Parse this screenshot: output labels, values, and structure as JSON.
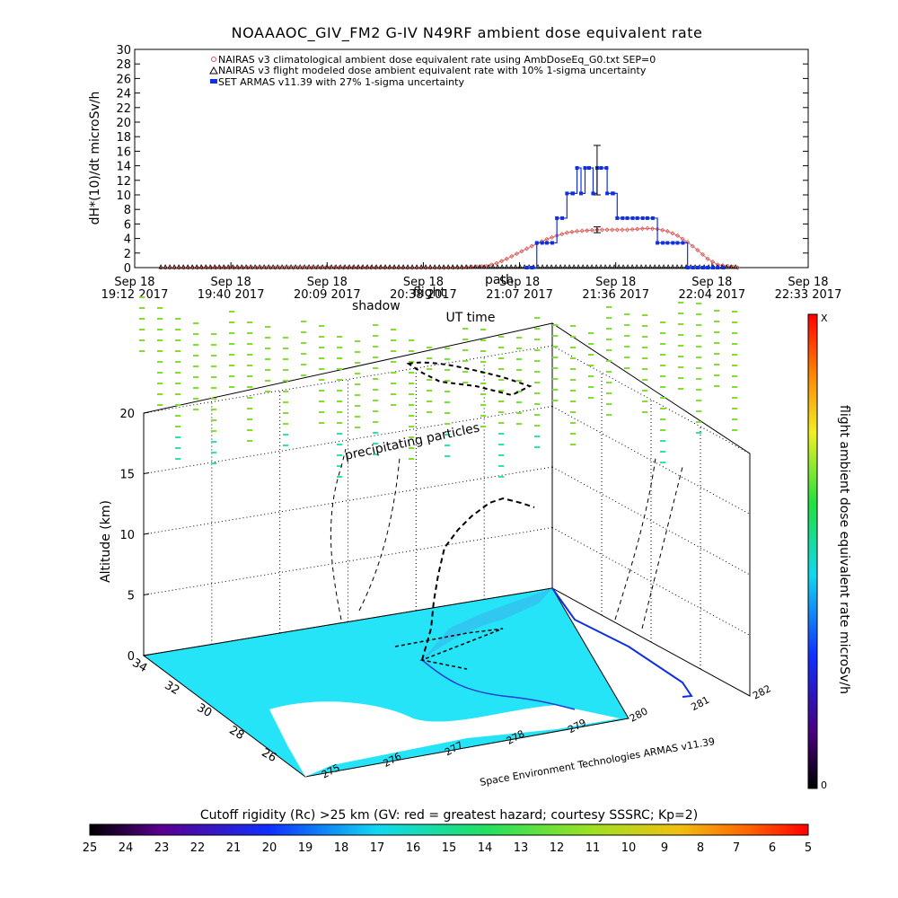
{
  "colors": {
    "climatological": "#d9534f",
    "armas": "#1030e0",
    "flight_model": "#000000",
    "sea": "#26e4f8",
    "land": "#ffffff",
    "precip_green": "#7fe030",
    "precip_cyan": "#28e6a8"
  },
  "chart_data": [
    {
      "type": "line",
      "title": "NOAAAOC_GIV_FM2 G-IV   N49RF  ambient dose equivalent rate",
      "xlabel": "UT time",
      "ylabel": "dH*(10)/dt microSv/h",
      "ylim": [
        0,
        30
      ],
      "yticks": [
        "0",
        "2",
        "4",
        "6",
        "8",
        "10",
        "12",
        "14",
        "16",
        "18",
        "20",
        "22",
        "24",
        "26",
        "28",
        "30"
      ],
      "xticks": [
        {
          "date": "Sep 18",
          "time": "19:12 2017"
        },
        {
          "date": "Sep 18",
          "time": "19:40 2017"
        },
        {
          "date": "Sep 18",
          "time": "20:09 2017"
        },
        {
          "date": "Sep 18",
          "time": "20:38 2017"
        },
        {
          "date": "Sep 18",
          "time": "21:07 2017"
        },
        {
          "date": "Sep 18",
          "time": "21:36 2017"
        },
        {
          "date": "Sep 18",
          "time": "22:04 2017"
        },
        {
          "date": "Sep 18",
          "time": "22:33 2017"
        }
      ],
      "legend": [
        "NAIRAS v3 climatological ambient dose equivalent rate using AmbDoseEq_G0.txt SEP=0",
        "NAIRAS v3 flight modeled dose ambient equivalent rate with 10% 1-sigma uncertainty",
        "SET ARMAS v11.39 with 27% 1-sigma uncertainty"
      ],
      "overlay_text": [
        "shadow",
        "flight",
        "path"
      ],
      "series": [
        {
          "name": "NAIRAS v3 climatological ambient dose equivalent rate using AmbDoseEq_G0.txt SEP=0",
          "x": [
            19.33,
            19.83,
            20.33,
            20.83,
            20.95,
            21.0,
            21.05,
            21.1,
            21.15,
            21.2,
            21.25,
            21.3,
            21.35,
            21.4,
            21.45,
            21.5,
            21.55,
            21.6,
            21.65,
            21.7,
            21.75,
            21.8,
            21.85,
            21.9,
            21.95,
            22.0,
            22.05,
            22.1,
            22.2
          ],
          "y": [
            0,
            0,
            0,
            0,
            0.2,
            0.6,
            1.2,
            1.9,
            2.6,
            3.3,
            3.9,
            4.4,
            4.8,
            5.0,
            5.1,
            5.2,
            5.2,
            5.2,
            5.2,
            5.3,
            5.4,
            5.3,
            5.0,
            4.4,
            3.5,
            2.4,
            1.2,
            0.4,
            0
          ]
        },
        {
          "name": "NAIRAS v3 flight modeled dose ambient equivalent rate with 10% 1-sigma uncertainty",
          "x": [
            19.33,
            19.83,
            20.33,
            20.83,
            21.33,
            21.83,
            22.2
          ],
          "y": [
            0,
            0,
            0,
            0,
            0,
            0,
            0
          ]
        },
        {
          "name": "SET ARMAS v11.39 with 27% 1-sigma uncertainty",
          "x": [
            21.15,
            21.2,
            21.25,
            21.3,
            21.35,
            21.38,
            21.4,
            21.42,
            21.44,
            21.46,
            21.48,
            21.5,
            21.52,
            21.55,
            21.58,
            21.6,
            21.65,
            21.7,
            21.75,
            21.8,
            21.85,
            21.9,
            21.95,
            22.0,
            22.05,
            22.1
          ],
          "y": [
            0,
            3.4,
            3.4,
            6.8,
            10.2,
            10.2,
            13.7,
            10.2,
            13.7,
            13.7,
            10.2,
            13.7,
            13.7,
            10.2,
            10.2,
            6.8,
            6.8,
            6.8,
            6.8,
            3.4,
            3.4,
            3.4,
            0,
            0,
            0,
            0
          ]
        }
      ],
      "errorbars": [
        {
          "x": 21.5,
          "low": 10.0,
          "high": 16.8
        },
        {
          "x": 21.5,
          "low": 4.8,
          "high": 5.6
        }
      ]
    },
    {
      "type": "scatter",
      "subtype": "3d-flight-track",
      "zlabel": "Altitude (km)",
      "zticks": [
        "0",
        "5",
        "10",
        "15",
        "20"
      ],
      "lat_ticks": [
        "34",
        "32",
        "30",
        "28",
        "26"
      ],
      "lon_ticks": [
        "275",
        "276",
        "277",
        "278",
        "279",
        "280",
        "281",
        "282"
      ],
      "annotations": [
        "precipitating particles"
      ],
      "credit": "Space Environment Technologies ARMAS v11.39",
      "colorbar_label": "flight ambient dose equivalent rate microSv/h",
      "colorbar_ticks": {
        "top": "X",
        "bottom": "0"
      }
    },
    {
      "type": "heatmap",
      "subtype": "colorbar",
      "title": "Cutoff rigidity (Rc) >25 km (GV: red = greatest hazard; courtesy SSSRC; Kp=2)",
      "ticks": [
        "25",
        "24",
        "23",
        "22",
        "21",
        "20",
        "19",
        "18",
        "17",
        "16",
        "15",
        "14",
        "13",
        "12",
        "11",
        "10",
        "9",
        "8",
        "7",
        "6",
        "5"
      ]
    }
  ]
}
